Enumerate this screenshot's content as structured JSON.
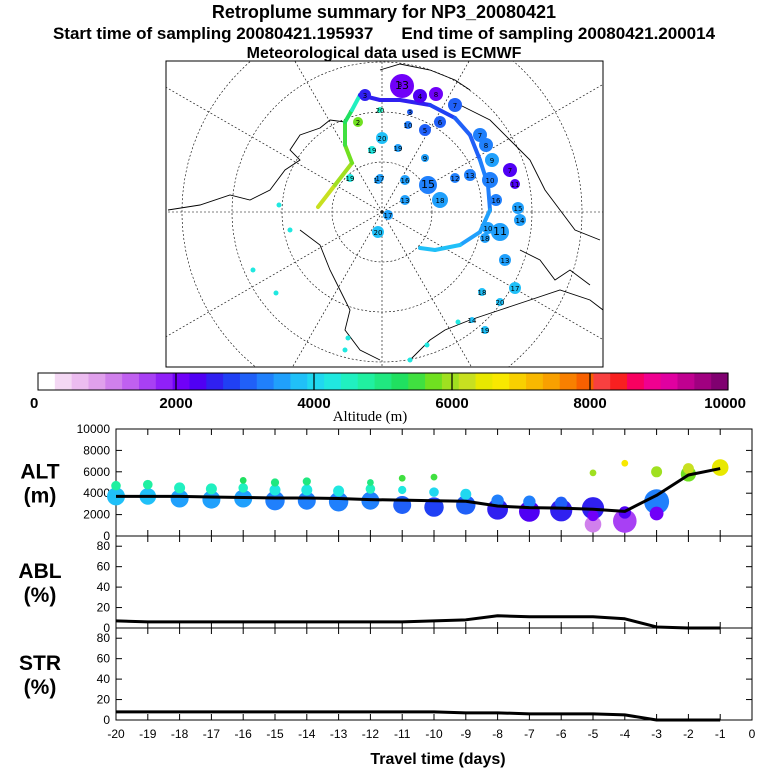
{
  "header": {
    "title": "Retroplume summary for NP3_20080421",
    "start_label": "Start time of sampling 20080421.195937",
    "end_label": "End time of sampling 20080421.200014",
    "met_label": "Meteorological data used is ECMWF"
  },
  "map_labels": [
    "1",
    "2",
    "3",
    "4",
    "5",
    "6",
    "7",
    "8",
    "9",
    "10",
    "11",
    "12",
    "13",
    "14",
    "15",
    "16",
    "17",
    "18",
    "19",
    "20"
  ],
  "colorbar": {
    "ticks": [
      "0",
      "2000",
      "4000",
      "6000",
      "8000",
      "10000"
    ],
    "label": "Altitude (m)",
    "colors": [
      "#ffffff",
      "#f4d8f4",
      "#ecbcf0",
      "#e0a0ec",
      "#d080ec",
      "#c060f0",
      "#a840f4",
      "#9020f8",
      "#7000f8",
      "#5000f4",
      "#3020f0",
      "#2040f4",
      "#2060f8",
      "#2080fc",
      "#20a0fc",
      "#20c0f8",
      "#20d8f0",
      "#20e8e0",
      "#20f0c0",
      "#20f0a0",
      "#20e880",
      "#20e060",
      "#40e040",
      "#70e020",
      "#a0e020",
      "#c8e020",
      "#e8e800",
      "#f8e800",
      "#f8d000",
      "#f8b800",
      "#f8a000",
      "#f88000",
      "#f86000",
      "#f84040",
      "#f82020",
      "#f80060",
      "#f00090",
      "#e000a0",
      "#c00090",
      "#a00080",
      "#800070"
    ]
  },
  "chart_data": [
    {
      "type": "line",
      "panel": "ALT",
      "ylabel": [
        "ALT",
        "(m)"
      ],
      "xlabel": "Travel time (days)",
      "xlim": [
        -20,
        0
      ],
      "ylim": [
        0,
        10000
      ],
      "yticks": [
        "0",
        "2000",
        "4000",
        "6000",
        "8000",
        "10000"
      ],
      "x": [
        -20,
        -19,
        -18,
        -17,
        -16,
        -15,
        -14,
        -13,
        -12,
        -11,
        -10,
        -9,
        -8,
        -7,
        -6,
        -5,
        -4,
        -3,
        -2,
        -1
      ],
      "series": [
        {
          "name": "mean altitude",
          "values": [
            3700,
            3700,
            3700,
            3650,
            3600,
            3550,
            3550,
            3500,
            3400,
            3350,
            3300,
            3250,
            2800,
            2650,
            2600,
            2500,
            2300,
            3800,
            5700,
            6300
          ]
        }
      ],
      "clusters": [
        {
          "x": -20,
          "y": 3700,
          "m": 1.0
        },
        {
          "x": -20,
          "y": 4700,
          "m": 0.4
        },
        {
          "x": -19,
          "y": 3700,
          "m": 0.9
        },
        {
          "x": -19,
          "y": 4800,
          "m": 0.4
        },
        {
          "x": -18,
          "y": 3500,
          "m": 1.0
        },
        {
          "x": -18,
          "y": 4500,
          "m": 0.5
        },
        {
          "x": -17,
          "y": 3400,
          "m": 1.0
        },
        {
          "x": -17,
          "y": 4400,
          "m": 0.5
        },
        {
          "x": -16,
          "y": 3500,
          "m": 1.0
        },
        {
          "x": -16,
          "y": 4500,
          "m": 0.4
        },
        {
          "x": -16,
          "y": 5200,
          "m": 0.2
        },
        {
          "x": -15,
          "y": 3300,
          "m": 1.1
        },
        {
          "x": -15,
          "y": 4300,
          "m": 0.5
        },
        {
          "x": -15,
          "y": 5000,
          "m": 0.3
        },
        {
          "x": -14,
          "y": 3300,
          "m": 1.0
        },
        {
          "x": -14,
          "y": 4300,
          "m": 0.5
        },
        {
          "x": -14,
          "y": 5100,
          "m": 0.3
        },
        {
          "x": -13,
          "y": 3200,
          "m": 1.1
        },
        {
          "x": -13,
          "y": 4200,
          "m": 0.5
        },
        {
          "x": -12,
          "y": 3300,
          "m": 1.0
        },
        {
          "x": -12,
          "y": 4400,
          "m": 0.4
        },
        {
          "x": -12,
          "y": 5000,
          "m": 0.2
        },
        {
          "x": -11,
          "y": 2900,
          "m": 1.0
        },
        {
          "x": -11,
          "y": 4300,
          "m": 0.3
        },
        {
          "x": -11,
          "y": 5400,
          "m": 0.2
        },
        {
          "x": -10,
          "y": 2700,
          "m": 1.1
        },
        {
          "x": -10,
          "y": 4100,
          "m": 0.4
        },
        {
          "x": -10,
          "y": 5500,
          "m": 0.2
        },
        {
          "x": -9,
          "y": 2900,
          "m": 1.1
        },
        {
          "x": -9,
          "y": 3900,
          "m": 0.5
        },
        {
          "x": -8,
          "y": 2500,
          "m": 1.2
        },
        {
          "x": -8,
          "y": 3300,
          "m": 0.6
        },
        {
          "x": -7,
          "y": 2300,
          "m": 1.2
        },
        {
          "x": -7,
          "y": 3200,
          "m": 0.6
        },
        {
          "x": -6,
          "y": 2400,
          "m": 1.3
        },
        {
          "x": -6,
          "y": 3100,
          "m": 0.6
        },
        {
          "x": -5,
          "y": 2600,
          "m": 1.3
        },
        {
          "x": -5,
          "y": 1100,
          "m": 0.9
        },
        {
          "x": -5,
          "y": 1900,
          "m": 0.5
        },
        {
          "x": -5,
          "y": 5900,
          "m": 0.2
        },
        {
          "x": -4,
          "y": 1400,
          "m": 1.4
        },
        {
          "x": -4,
          "y": 2200,
          "m": 0.6
        },
        {
          "x": -4,
          "y": 6800,
          "m": 0.2
        },
        {
          "x": -3,
          "y": 3200,
          "m": 1.5
        },
        {
          "x": -3,
          "y": 2100,
          "m": 0.7
        },
        {
          "x": -3,
          "y": 6000,
          "m": 0.5
        },
        {
          "x": -2,
          "y": 5800,
          "m": 0.8
        },
        {
          "x": -2,
          "y": 6300,
          "m": 0.5
        },
        {
          "x": -1,
          "y": 6400,
          "m": 0.9
        }
      ]
    },
    {
      "type": "line",
      "panel": "ABL",
      "ylabel": [
        "ABL",
        "(%)"
      ],
      "xlim": [
        -20,
        0
      ],
      "ylim": [
        0,
        90
      ],
      "yticks": [
        "0",
        "20",
        "40",
        "60",
        "80"
      ],
      "x": [
        -20,
        -19,
        -18,
        -17,
        -16,
        -15,
        -14,
        -13,
        -12,
        -11,
        -10,
        -9,
        -8,
        -7,
        -6,
        -5,
        -4,
        -3,
        -2,
        -1
      ],
      "series": [
        {
          "name": "ABL fraction",
          "values": [
            7,
            6,
            6,
            6,
            6,
            6,
            6,
            6,
            6,
            6,
            7,
            8,
            12,
            11,
            11,
            11,
            9,
            1,
            0,
            0
          ]
        }
      ]
    },
    {
      "type": "line",
      "panel": "STR",
      "ylabel": [
        "STR",
        "(%)"
      ],
      "xlim": [
        -20,
        0
      ],
      "ylim": [
        0,
        90
      ],
      "yticks": [
        "0",
        "20",
        "40",
        "60",
        "80"
      ],
      "x": [
        -20,
        -19,
        -18,
        -17,
        -16,
        -15,
        -14,
        -13,
        -12,
        -11,
        -10,
        -9,
        -8,
        -7,
        -6,
        -5,
        -4,
        -3,
        -2,
        -1
      ],
      "series": [
        {
          "name": "STR fraction",
          "values": [
            8,
            8,
            8,
            8,
            8,
            8,
            8,
            8,
            8,
            8,
            8,
            7,
            7,
            6,
            6,
            6,
            5,
            0,
            0,
            0
          ]
        }
      ],
      "xticks": [
        "-20",
        "-19",
        "-18",
        "-17",
        "-16",
        "-15",
        "-14",
        "-13",
        "-12",
        "-11",
        "-10",
        "-9",
        "-8",
        "-7",
        "-6",
        "-5",
        "-4",
        "-3",
        "-2",
        "-1",
        "0"
      ]
    }
  ]
}
